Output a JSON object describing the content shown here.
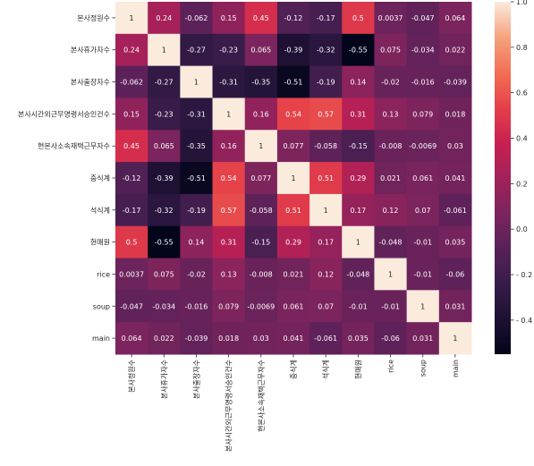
{
  "chart_data": {
    "type": "heatmap",
    "title": "",
    "xlabel": "",
    "ylabel": "",
    "labels": [
      "본사정원수",
      "본사휴가자수",
      "본사출장자수",
      "본사시간외근무명령서승인건수",
      "현본사소속재택근무자수",
      "중식계",
      "석식계",
      "현매원",
      "rice",
      "soup",
      "main"
    ],
    "values": [
      [
        "1",
        "0.24",
        "-0.062",
        "0.15",
        "0.45",
        "-0.12",
        "-0.17",
        "0.5",
        "0.0037",
        "-0.047",
        "0.064"
      ],
      [
        "0.24",
        "1",
        "-0.27",
        "-0.23",
        "0.065",
        "-0.39",
        "-0.32",
        "-0.55",
        "0.075",
        "-0.034",
        "0.022"
      ],
      [
        "-0.062",
        "-0.27",
        "1",
        "-0.31",
        "-0.35",
        "-0.51",
        "-0.19",
        "0.14",
        "-0.02",
        "-0.016",
        "-0.039"
      ],
      [
        "0.15",
        "-0.23",
        "-0.31",
        "1",
        "0.16",
        "0.54",
        "0.57",
        "0.31",
        "0.13",
        "0.079",
        "0.018"
      ],
      [
        "0.45",
        "0.065",
        "-0.35",
        "0.16",
        "1",
        "0.077",
        "-0.058",
        "-0.15",
        "-0.008",
        "-0.0069",
        "0.03"
      ],
      [
        "-0.12",
        "-0.39",
        "-0.51",
        "0.54",
        "0.077",
        "1",
        "0.51",
        "0.29",
        "0.021",
        "0.061",
        "0.041"
      ],
      [
        "-0.17",
        "-0.32",
        "-0.19",
        "0.57",
        "-0.058",
        "0.51",
        "1",
        "0.17",
        "0.12",
        "0.07",
        "-0.061"
      ],
      [
        "0.5",
        "-0.55",
        "0.14",
        "0.31",
        "-0.15",
        "0.29",
        "0.17",
        "1",
        "-0.048",
        "-0.01",
        "0.035"
      ],
      [
        "0.0037",
        "0.075",
        "-0.02",
        "0.13",
        "-0.008",
        "0.021",
        "0.12",
        "-0.048",
        "1",
        "-0.01",
        "-0.06"
      ],
      [
        "-0.047",
        "-0.034",
        "-0.016",
        "0.079",
        "-0.0069",
        "0.061",
        "0.07",
        "-0.01",
        "-0.01",
        "1",
        "0.031"
      ],
      [
        "0.064",
        "0.022",
        "-0.039",
        "0.018",
        "0.03",
        "0.041",
        "-0.061",
        "0.035",
        "-0.06",
        "0.031",
        "1"
      ]
    ],
    "colorbar": {
      "min": -0.55,
      "max": 1.0,
      "ticks": [
        "1.0",
        "0.8",
        "0.6",
        "0.4",
        "0.2",
        "0.0",
        "- 0.2",
        "- 0.4"
      ],
      "tick_values": [
        1.0,
        0.8,
        0.6,
        0.4,
        0.2,
        0.0,
        -0.2,
        -0.4
      ],
      "colormap": "rocket"
    }
  }
}
